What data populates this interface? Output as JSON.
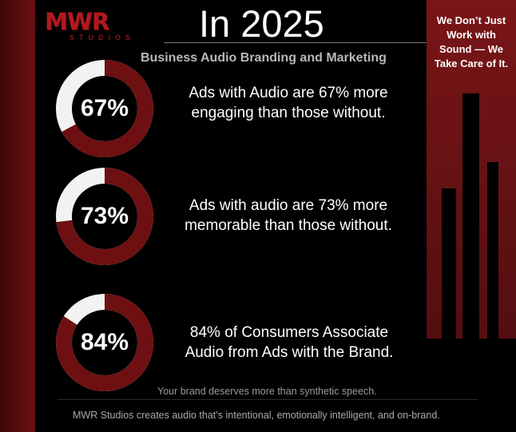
{
  "logo": {
    "letters": "MWR",
    "sub": "STUDIOS"
  },
  "header": {
    "title": "In 2025",
    "subtitle": "Business Audio Branding and Marketing"
  },
  "tagline": "We Don’t Just Work with Sound — We Take Care of It.",
  "stats": [
    {
      "percent_label": "67%",
      "value": 67,
      "text_line1": "Ads with Audio are 67% more",
      "text_line2": "engaging than those without."
    },
    {
      "percent_label": "73%",
      "value": 73,
      "text_line1": "Ads with audio are 73% more",
      "text_line2": "memorable than those without."
    },
    {
      "percent_label": "84%",
      "value": 84,
      "text_line1": "84% of Consumers Associate",
      "text_line2": "Audio from Ads with the Brand."
    }
  ],
  "footer": {
    "note": "Your brand deserves more than synthetic speech.",
    "text": "MWR Studios creates audio that’s intentional, emotionally intelligent, and on-brand."
  },
  "colors": {
    "ring_red": "#6e1012",
    "ring_white": "#f2f2f2",
    "panel_red": "#6a1315"
  }
}
